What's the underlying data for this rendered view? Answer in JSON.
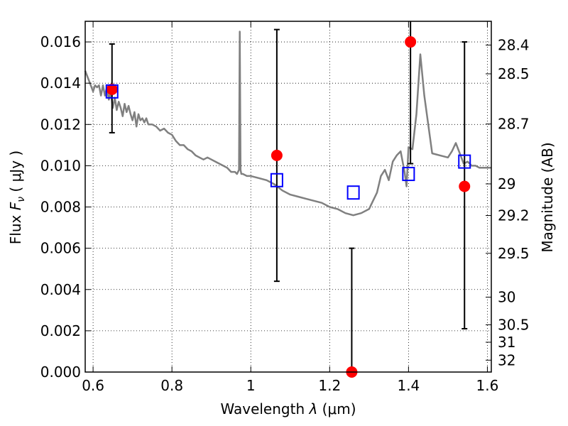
{
  "chart_data": {
    "type": "scatter",
    "xlabel": {
      "prefix": "Wavelength  ",
      "symbol": "λ",
      "unit": " (μm)"
    },
    "ylabel": {
      "prefix": "Flux  ",
      "symbol": "F",
      "subscript": "ν",
      "unit": "  ( μJy )"
    },
    "ylabel_right": "Magnitude (AB)",
    "xlim": [
      0.58,
      1.61
    ],
    "ylim": [
      0,
      0.017
    ],
    "grid": true,
    "grid_style": "dotted",
    "xticks": [
      {
        "value": 0.6,
        "label": "0.6"
      },
      {
        "value": 0.8,
        "label": "0.8"
      },
      {
        "value": 1.0,
        "label": "1"
      },
      {
        "value": 1.2,
        "label": "1.2"
      },
      {
        "value": 1.4,
        "label": "1.4"
      },
      {
        "value": 1.6,
        "label": "1.6"
      }
    ],
    "yticks": [
      {
        "value": 0.0,
        "label": "0.000"
      },
      {
        "value": 0.002,
        "label": "0.002"
      },
      {
        "value": 0.004,
        "label": "0.004"
      },
      {
        "value": 0.006,
        "label": "0.006"
      },
      {
        "value": 0.008,
        "label": "0.008"
      },
      {
        "value": 0.01,
        "label": "0.010"
      },
      {
        "value": 0.012,
        "label": "0.012"
      },
      {
        "value": 0.014,
        "label": "0.014"
      },
      {
        "value": 0.016,
        "label": "0.016"
      }
    ],
    "right_ticks": [
      {
        "value": 28.4,
        "label": "28.4"
      },
      {
        "value": 28.5,
        "label": "28.5"
      },
      {
        "value": 28.7,
        "label": "28.7"
      },
      {
        "value": 29.0,
        "label": "29"
      },
      {
        "value": 29.2,
        "label": "29.2"
      },
      {
        "value": 29.5,
        "label": "29.5"
      },
      {
        "value": 30.0,
        "label": "30"
      },
      {
        "value": 30.5,
        "label": "30.5"
      },
      {
        "value": 31.0,
        "label": "31"
      },
      {
        "value": 32.0,
        "label": "32"
      }
    ],
    "colors": {
      "model": "#808080",
      "observed": "#ff0000",
      "model_band": "#0000ff",
      "errorbar": "#000000"
    },
    "series": [
      {
        "kind": "line",
        "color": "#808080",
        "x": [
          0.58,
          0.59,
          0.6,
          0.605,
          0.61,
          0.615,
          0.62,
          0.625,
          0.63,
          0.635,
          0.64,
          0.645,
          0.65,
          0.655,
          0.66,
          0.665,
          0.67,
          0.675,
          0.68,
          0.685,
          0.69,
          0.695,
          0.7,
          0.705,
          0.71,
          0.715,
          0.72,
          0.725,
          0.73,
          0.735,
          0.74,
          0.75,
          0.76,
          0.77,
          0.78,
          0.79,
          0.8,
          0.81,
          0.82,
          0.83,
          0.84,
          0.85,
          0.86,
          0.87,
          0.88,
          0.89,
          0.9,
          0.91,
          0.92,
          0.93,
          0.94,
          0.95,
          0.96,
          0.965,
          0.97,
          0.972,
          0.974,
          0.976,
          0.98,
          0.99,
          1.0,
          1.02,
          1.04,
          1.06,
          1.08,
          1.1,
          1.12,
          1.14,
          1.16,
          1.18,
          1.2,
          1.22,
          1.24,
          1.26,
          1.28,
          1.3,
          1.32,
          1.33,
          1.34,
          1.35,
          1.36,
          1.37,
          1.38,
          1.39,
          1.395,
          1.4,
          1.41,
          1.42,
          1.43,
          1.44,
          1.46,
          1.48,
          1.5,
          1.51,
          1.52,
          1.53,
          1.54,
          1.55,
          1.56,
          1.57,
          1.58,
          1.6,
          1.61
        ],
        "y": [
          0.0146,
          0.0141,
          0.0136,
          0.0139,
          0.0138,
          0.0139,
          0.0134,
          0.0139,
          0.0134,
          0.0138,
          0.0132,
          0.0136,
          0.0128,
          0.0133,
          0.0127,
          0.0131,
          0.0128,
          0.0124,
          0.013,
          0.0126,
          0.0129,
          0.0125,
          0.0122,
          0.0126,
          0.0119,
          0.0125,
          0.0122,
          0.0123,
          0.0121,
          0.0123,
          0.012,
          0.012,
          0.0119,
          0.0117,
          0.0118,
          0.0116,
          0.0115,
          0.0112,
          0.011,
          0.011,
          0.0108,
          0.0107,
          0.0105,
          0.0104,
          0.0103,
          0.0104,
          0.0103,
          0.0102,
          0.0101,
          0.01,
          0.0099,
          0.0097,
          0.0097,
          0.0096,
          0.0098,
          0.0165,
          0.0098,
          0.0096,
          0.0096,
          0.0095,
          0.0095,
          0.0094,
          0.0093,
          0.0091,
          0.0088,
          0.0086,
          0.0085,
          0.0084,
          0.0083,
          0.0082,
          0.008,
          0.0079,
          0.0077,
          0.0076,
          0.0077,
          0.0079,
          0.0087,
          0.0095,
          0.0098,
          0.0093,
          0.0102,
          0.0105,
          0.0107,
          0.0097,
          0.009,
          0.0109,
          0.0108,
          0.0125,
          0.0154,
          0.0134,
          0.0106,
          0.0105,
          0.0104,
          0.0107,
          0.0111,
          0.0106,
          0.0101,
          0.0102,
          0.01,
          0.01,
          0.0099,
          0.0099,
          0.0099
        ]
      },
      {
        "kind": "points",
        "marker": "circle",
        "color": "#ff0000",
        "x": [
          0.648,
          1.066,
          1.256,
          1.405,
          1.542
        ],
        "y": [
          0.0137,
          0.0105,
          0.0,
          0.016,
          0.009
        ],
        "yerr_low": [
          0.0116,
          0.0044,
          0.0,
          0.0101,
          0.0021
        ],
        "yerr_high": [
          0.0159,
          0.0166,
          0.006,
          0.0171,
          0.016
        ]
      },
      {
        "kind": "points",
        "marker": "square-open",
        "color": "#0000ff",
        "x": [
          0.648,
          1.066,
          1.26,
          1.4,
          1.542
        ],
        "y": [
          0.0136,
          0.0093,
          0.0087,
          0.0096,
          0.0102
        ]
      }
    ]
  }
}
